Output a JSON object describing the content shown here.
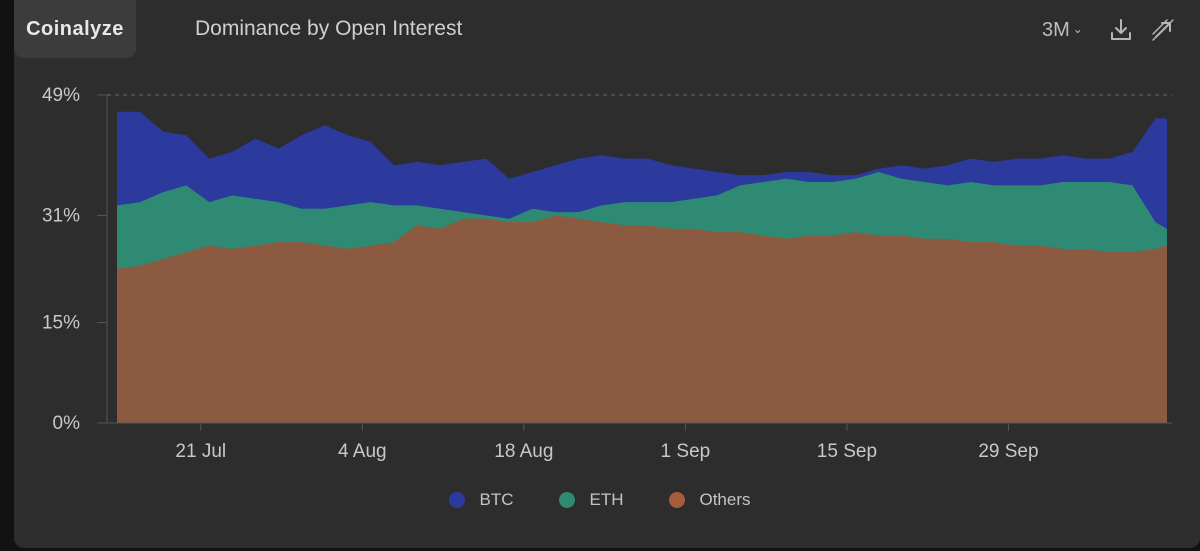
{
  "app": {
    "brand": "Coinalyze",
    "title": "Dominance by Open Interest"
  },
  "toolbar": {
    "range_label": "3M",
    "download_icon": "download-icon",
    "expand_icon": "expand-icon"
  },
  "colors": {
    "btc": "#2b3a9c",
    "eth": "#2e8a72",
    "others": "#a85c3e",
    "base": "#8c5a40"
  },
  "chart_data": {
    "type": "area",
    "title": "Dominance by Open Interest",
    "xlabel": "",
    "ylabel": "",
    "x_tick_labels": [
      "21 Jul",
      "4 Aug",
      "18 Aug",
      "1 Sep",
      "15 Sep",
      "29 Sep"
    ],
    "x_tick_days": [
      7,
      21,
      35,
      49,
      63,
      77
    ],
    "y_tick_labels": [
      "49%",
      "31%",
      "15%",
      "0%"
    ],
    "y_tick_values": [
      49,
      31,
      15,
      0
    ],
    "ylim": [
      0,
      49
    ],
    "legend_position": "bottom-center",
    "grid": "dashed line at 49%",
    "x_days": [
      0,
      2,
      4,
      6,
      8,
      10,
      12,
      14,
      16,
      18,
      20,
      22,
      24,
      26,
      28,
      30,
      32,
      34,
      36,
      38,
      40,
      42,
      44,
      46,
      48,
      50,
      52,
      54,
      56,
      58,
      60,
      62,
      64,
      66,
      68,
      70,
      72,
      74,
      76,
      78,
      80,
      82,
      84,
      86,
      88,
      90,
      91
    ],
    "series": [
      {
        "name": "Others",
        "color": "#a85c3e",
        "values": [
          23,
          23.5,
          24.5,
          25.5,
          26.5,
          26,
          26.5,
          27,
          27,
          26.5,
          26,
          26.5,
          27,
          29.5,
          29,
          30.5,
          30.5,
          30,
          30,
          31,
          30.5,
          30,
          29.5,
          29.5,
          29,
          29,
          28.5,
          28.5,
          28,
          27.5,
          28,
          28,
          28.5,
          28,
          28,
          27.5,
          27.5,
          27,
          27,
          26.5,
          26.5,
          26,
          26,
          25.5,
          25.5,
          26,
          26.5
        ]
      },
      {
        "name": "ETH",
        "color": "#2e8a72",
        "values": [
          32.5,
          33,
          34.5,
          35.5,
          33,
          34,
          33.5,
          33,
          32,
          32,
          32.5,
          33,
          32.5,
          32.5,
          32,
          31.5,
          31,
          30.5,
          32,
          31.5,
          31.5,
          32.5,
          33,
          33,
          33,
          33.5,
          34,
          35.5,
          36,
          36.5,
          36,
          36,
          36.5,
          37.5,
          36.5,
          36,
          35.5,
          36,
          35.5,
          35.5,
          35.5,
          36,
          36,
          36,
          35.5,
          30,
          29
        ]
      },
      {
        "name": "BTC",
        "color": "#2b3a9c",
        "values": [
          46.5,
          46.5,
          43.5,
          43,
          39.5,
          40.5,
          42.5,
          41,
          43,
          44.5,
          43,
          42,
          38.5,
          39,
          38.5,
          39,
          39.5,
          36.5,
          37.5,
          38.5,
          39.5,
          40,
          39.5,
          39.5,
          38.5,
          38,
          37.5,
          37,
          37,
          37.5,
          37.5,
          37,
          37,
          38,
          38.5,
          38,
          38.5,
          39.5,
          39,
          39.5,
          39.5,
          40,
          39.5,
          39.5,
          40.5,
          45.5,
          45.5
        ]
      }
    ]
  },
  "legend": [
    {
      "label": "BTC",
      "color": "#2b3a9c"
    },
    {
      "label": "ETH",
      "color": "#2e8a72"
    },
    {
      "label": "Others",
      "color": "#a85c3e"
    }
  ]
}
